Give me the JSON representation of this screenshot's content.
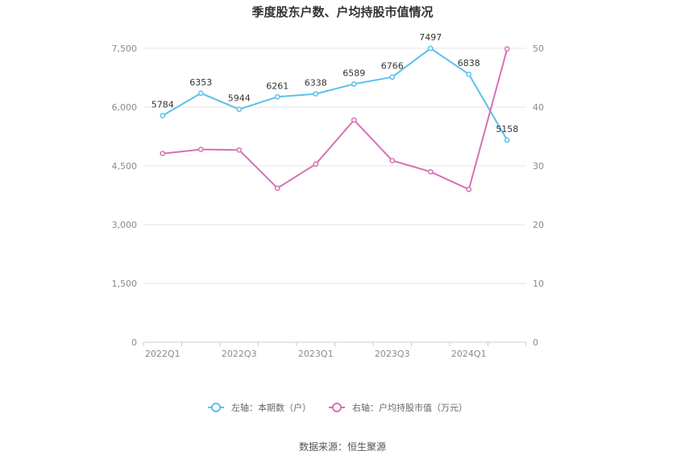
{
  "chart_data": {
    "type": "line",
    "title": "季度股东户数、户均持股市值情况",
    "x": [
      "2022Q1",
      "2022Q2",
      "2022Q3",
      "2022Q4",
      "2023Q1",
      "2023Q2",
      "2023Q3",
      "2023Q4",
      "2024Q1",
      "2024Q2"
    ],
    "x_tick_labels": [
      "2022Q1",
      "2022Q3",
      "2023Q1",
      "2023Q3",
      "2024Q1"
    ],
    "y_left": {
      "range": [
        0,
        7500
      ],
      "ticks": [
        "0",
        "1,500",
        "3,000",
        "4,500",
        "6,000",
        "7,500"
      ]
    },
    "y_right": {
      "range": [
        0,
        50
      ],
      "ticks": [
        "0",
        "10",
        "20",
        "30",
        "40",
        "50"
      ]
    },
    "series": [
      {
        "name": "左轴：本期数（户）",
        "axis": "left",
        "color": "#5bc0eb",
        "values": [
          5784,
          6353,
          5944,
          6261,
          6338,
          6589,
          6766,
          7497,
          6838,
          5158
        ],
        "labels": [
          "5784",
          "6353",
          "5944",
          "6261",
          "6338",
          "6589",
          "6766",
          "7497",
          "6838",
          "5158"
        ]
      },
      {
        "name": "右轴：户均持股市值（万元）",
        "axis": "right",
        "color": "#d870b4",
        "values": [
          32.1,
          32.8,
          32.7,
          26.2,
          30.3,
          37.8,
          30.9,
          29.0,
          26.0,
          49.9
        ]
      }
    ],
    "grid": true,
    "legend_position": "bottom"
  },
  "source": "数据来源：恒生聚源"
}
